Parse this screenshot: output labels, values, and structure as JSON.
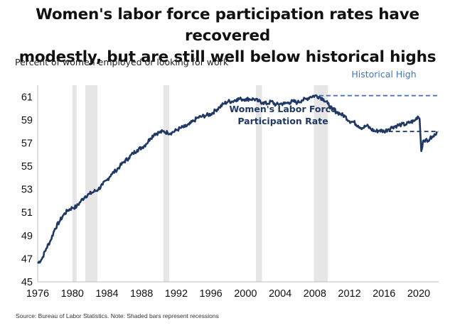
{
  "title_line1": "Women's labor force participation rates have recovered",
  "title_line2": "modestly, but are still well below historical highs",
  "y_axis_label": "Percent of women employed or looking for work",
  "source": "Source: Bureau of Labor Statistics. Note: Shaded bars represent recessions",
  "colors": {
    "series": "#1f3864",
    "reference": "#4472c4",
    "recession": "#e6e6e6"
  },
  "chart_data": {
    "type": "line",
    "title": "Women's labor force participation rates have recovered modestly, but are still well below historical highs",
    "ylabel": "Percent of women employed or looking for work",
    "xlabel": "",
    "xlim": [
      1976,
      2022.3
    ],
    "ylim": [
      45,
      62
    ],
    "x_ticks": [
      1976,
      1980,
      1984,
      1988,
      1992,
      1996,
      2000,
      2004,
      2008,
      2012,
      2016,
      2020
    ],
    "y_ticks": [
      45,
      47,
      49,
      51,
      53,
      55,
      57,
      59,
      61
    ],
    "grid": false,
    "recessions": [
      [
        1980.0,
        1980.5
      ],
      [
        1981.5,
        1982.9
      ],
      [
        1990.5,
        1991.2
      ],
      [
        2001.2,
        2001.9
      ],
      [
        2007.9,
        2009.5
      ]
    ],
    "series": [
      {
        "name": "Women's Labor Force Participation Rate",
        "x": [
          1976,
          1976.5,
          1977,
          1977.5,
          1978,
          1978.5,
          1979,
          1979.5,
          1980,
          1980.5,
          1981,
          1981.5,
          1982,
          1982.5,
          1983,
          1983.5,
          1984,
          1984.5,
          1985,
          1985.5,
          1986,
          1986.5,
          1987,
          1987.5,
          1988,
          1988.5,
          1989,
          1989.5,
          1990,
          1990.5,
          1991,
          1991.5,
          1992,
          1992.5,
          1993,
          1993.5,
          1994,
          1994.5,
          1995,
          1995.5,
          1996,
          1996.5,
          1997,
          1997.5,
          1998,
          1998.5,
          1999,
          1999.5,
          2000,
          2000.5,
          2001,
          2001.5,
          2002,
          2002.5,
          2003,
          2003.5,
          2004,
          2004.5,
          2005,
          2005.5,
          2006,
          2006.5,
          2007,
          2007.5,
          2008,
          2008.5,
          2009,
          2009.5,
          2010,
          2010.5,
          2011,
          2011.5,
          2012,
          2012.5,
          2013,
          2013.5,
          2014,
          2014.5,
          2015,
          2015.5,
          2016,
          2016.5,
          2017,
          2017.5,
          2018,
          2018.5,
          2019,
          2019.5,
          2019.9,
          2020.1,
          2020.3,
          2020.5,
          2020.8,
          2021,
          2021.3,
          2021.6,
          2021.9,
          2022.1
        ],
        "values": [
          46.6,
          47.0,
          47.9,
          48.6,
          49.6,
          50.2,
          50.8,
          51.2,
          51.4,
          51.5,
          52.0,
          52.4,
          52.6,
          52.8,
          53.0,
          53.4,
          53.8,
          54.3,
          54.6,
          55.0,
          55.4,
          55.7,
          56.1,
          56.4,
          56.6,
          56.9,
          57.4,
          57.8,
          57.9,
          58.0,
          57.9,
          57.9,
          58.1,
          58.3,
          58.4,
          58.6,
          58.9,
          59.2,
          59.3,
          59.4,
          59.5,
          59.8,
          60.1,
          60.4,
          60.6,
          60.6,
          60.8,
          60.8,
          60.8,
          60.8,
          60.8,
          60.6,
          60.5,
          60.4,
          60.6,
          60.3,
          60.4,
          60.4,
          60.5,
          60.6,
          60.5,
          60.7,
          60.8,
          61.0,
          61.1,
          61.0,
          60.8,
          60.4,
          59.9,
          59.7,
          59.5,
          59.3,
          58.9,
          58.8,
          58.5,
          58.3,
          58.5,
          58.2,
          58.0,
          58.1,
          58.0,
          58.2,
          58.4,
          58.5,
          58.6,
          58.6,
          58.8,
          58.9,
          59.3,
          59.1,
          56.3,
          57.2,
          57.3,
          57.1,
          57.4,
          57.5,
          57.7,
          58.0
        ]
      }
    ],
    "reference_lines": [
      {
        "label": "Historical High",
        "y": 61.1,
        "x_start": 2008.5
      },
      {
        "label": "",
        "y": 58.0,
        "x_start": 2015.7
      }
    ],
    "annotations": [
      {
        "text_line1": "Women's Labor Force",
        "text_line2": "Participation Rate"
      },
      {
        "text": "Historical High"
      }
    ]
  }
}
